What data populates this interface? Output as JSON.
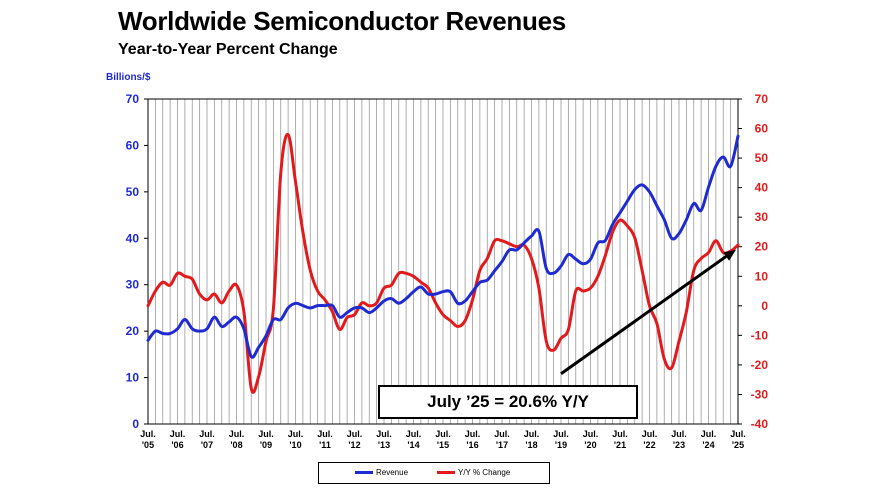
{
  "title": "Worldwide Semiconductor Revenues",
  "subtitle": "Year-to-Year Percent Change",
  "annotation": "July ’25 = 20.6% Y/Y",
  "colors": {
    "revenue": "#1f2bd1",
    "yoy": "#e31a1c",
    "trend_arrow": "#000000",
    "grid": "#9a9a9a"
  },
  "chart_data": {
    "type": "line",
    "title": "Worldwide Semiconductor Revenues",
    "subtitle": "Year-to-Year Percent Change",
    "left_axis": {
      "label": "Billions/$",
      "range": [
        0,
        70
      ],
      "ticks": [
        "0",
        "10",
        "20",
        "30",
        "40",
        "50",
        "60",
        "70"
      ]
    },
    "right_axis": {
      "range": [
        -40,
        70
      ],
      "ticks": [
        "-40",
        "-30",
        "-20",
        "-10",
        "0",
        "10",
        "20",
        "30",
        "40",
        "50",
        "60",
        "70"
      ]
    },
    "x_ticks": [
      {
        "top": "Jul.",
        "bottom": "'05"
      },
      {
        "top": "Jul.",
        "bottom": "'06"
      },
      {
        "top": "Jul.",
        "bottom": "'07"
      },
      {
        "top": "Jul.",
        "bottom": "'08"
      },
      {
        "top": "Jul.",
        "bottom": "'09"
      },
      {
        "top": "Jul.",
        "bottom": "'10"
      },
      {
        "top": "Jul.",
        "bottom": "'11"
      },
      {
        "top": "Jul.",
        "bottom": "'12"
      },
      {
        "top": "Jul.",
        "bottom": "'13"
      },
      {
        "top": "Jul.",
        "bottom": "'14"
      },
      {
        "top": "Jul.",
        "bottom": "'15"
      },
      {
        "top": "Jul.",
        "bottom": "'16"
      },
      {
        "top": "Jul.",
        "bottom": "'17"
      },
      {
        "top": "Jul.",
        "bottom": "'18"
      },
      {
        "top": "Jul.",
        "bottom": "'19"
      },
      {
        "top": "Jul.",
        "bottom": "'20"
      },
      {
        "top": "Jul.",
        "bottom": "'21"
      },
      {
        "top": "Jul.",
        "bottom": "'22"
      },
      {
        "top": "Jul.",
        "bottom": "'23"
      },
      {
        "top": "Jul.",
        "bottom": "'24"
      },
      {
        "top": "Jul.",
        "bottom": "'25"
      }
    ],
    "grid": true,
    "legend_position": "bottom-center",
    "series": [
      {
        "name": "Revenue",
        "axis": "left",
        "points": [
          [
            "2005-07",
            18.0
          ],
          [
            "2005-10",
            20.0
          ],
          [
            "2006-01",
            19.5
          ],
          [
            "2006-04",
            19.5
          ],
          [
            "2006-07",
            20.5
          ],
          [
            "2006-10",
            22.5
          ],
          [
            "2007-01",
            20.5
          ],
          [
            "2007-04",
            20.0
          ],
          [
            "2007-07",
            20.5
          ],
          [
            "2007-10",
            23.0
          ],
          [
            "2008-01",
            21.0
          ],
          [
            "2008-04",
            22.0
          ],
          [
            "2008-07",
            23.0
          ],
          [
            "2008-10",
            20.5
          ],
          [
            "2009-01",
            14.5
          ],
          [
            "2009-04",
            16.5
          ],
          [
            "2009-07",
            19.0
          ],
          [
            "2009-10",
            22.5
          ],
          [
            "2010-01",
            22.5
          ],
          [
            "2010-04",
            25.0
          ],
          [
            "2010-07",
            26.0
          ],
          [
            "2010-10",
            25.5
          ],
          [
            "2011-01",
            25.0
          ],
          [
            "2011-04",
            25.5
          ],
          [
            "2011-07",
            25.5
          ],
          [
            "2011-10",
            25.5
          ],
          [
            "2012-01",
            23.0
          ],
          [
            "2012-04",
            24.0
          ],
          [
            "2012-07",
            25.0
          ],
          [
            "2012-10",
            25.0
          ],
          [
            "2013-01",
            24.0
          ],
          [
            "2013-04",
            25.0
          ],
          [
            "2013-07",
            26.5
          ],
          [
            "2013-10",
            27.0
          ],
          [
            "2014-01",
            26.0
          ],
          [
            "2014-04",
            27.0
          ],
          [
            "2014-07",
            28.5
          ],
          [
            "2014-10",
            29.5
          ],
          [
            "2015-01",
            28.0
          ],
          [
            "2015-04",
            28.0
          ],
          [
            "2015-07",
            28.5
          ],
          [
            "2015-10",
            28.5
          ],
          [
            "2016-01",
            26.0
          ],
          [
            "2016-04",
            26.5
          ],
          [
            "2016-07",
            28.5
          ],
          [
            "2016-10",
            30.5
          ],
          [
            "2017-01",
            31.0
          ],
          [
            "2017-04",
            33.0
          ],
          [
            "2017-07",
            35.0
          ],
          [
            "2017-10",
            37.5
          ],
          [
            "2018-01",
            37.5
          ],
          [
            "2018-04",
            39.0
          ],
          [
            "2018-07",
            40.5
          ],
          [
            "2018-10",
            41.5
          ],
          [
            "2019-01",
            33.5
          ],
          [
            "2019-04",
            32.5
          ],
          [
            "2019-07",
            34.0
          ],
          [
            "2019-10",
            36.5
          ],
          [
            "2020-01",
            35.5
          ],
          [
            "2020-04",
            34.5
          ],
          [
            "2020-07",
            35.5
          ],
          [
            "2020-10",
            39.0
          ],
          [
            "2021-01",
            39.5
          ],
          [
            "2021-04",
            43.0
          ],
          [
            "2021-07",
            45.5
          ],
          [
            "2021-10",
            48.0
          ],
          [
            "2022-01",
            50.5
          ],
          [
            "2022-04",
            51.5
          ],
          [
            "2022-07",
            50.0
          ],
          [
            "2022-10",
            47.0
          ],
          [
            "2023-01",
            44.0
          ],
          [
            "2023-04",
            40.0
          ],
          [
            "2023-07",
            41.0
          ],
          [
            "2023-10",
            44.0
          ],
          [
            "2024-01",
            47.5
          ],
          [
            "2024-04",
            46.0
          ],
          [
            "2024-07",
            51.0
          ],
          [
            "2024-10",
            55.5
          ],
          [
            "2025-01",
            57.5
          ],
          [
            "2025-04",
            55.5
          ],
          [
            "2025-07",
            62.0
          ]
        ]
      },
      {
        "name": "Y/Y % Change",
        "axis": "right",
        "points": [
          [
            "2005-07",
            0.0
          ],
          [
            "2005-10",
            5.0
          ],
          [
            "2006-01",
            8.0
          ],
          [
            "2006-04",
            7.0
          ],
          [
            "2006-07",
            11.0
          ],
          [
            "2006-10",
            10.0
          ],
          [
            "2007-01",
            9.0
          ],
          [
            "2007-04",
            4.0
          ],
          [
            "2007-07",
            2.0
          ],
          [
            "2007-10",
            4.0
          ],
          [
            "2008-01",
            1.0
          ],
          [
            "2008-04",
            5.0
          ],
          [
            "2008-07",
            7.0
          ],
          [
            "2008-10",
            -2.0
          ],
          [
            "2009-01",
            -28.0
          ],
          [
            "2009-04",
            -24.0
          ],
          [
            "2009-07",
            -12.0
          ],
          [
            "2009-10",
            -1.0
          ],
          [
            "2010-01",
            45.0
          ],
          [
            "2010-04",
            58.0
          ],
          [
            "2010-07",
            42.0
          ],
          [
            "2010-10",
            25.0
          ],
          [
            "2011-01",
            12.0
          ],
          [
            "2011-04",
            5.0
          ],
          [
            "2011-07",
            2.0
          ],
          [
            "2011-10",
            -2.0
          ],
          [
            "2012-01",
            -8.0
          ],
          [
            "2012-04",
            -4.0
          ],
          [
            "2012-07",
            -3.0
          ],
          [
            "2012-10",
            1.0
          ],
          [
            "2013-01",
            0.0
          ],
          [
            "2013-04",
            1.0
          ],
          [
            "2013-07",
            6.0
          ],
          [
            "2013-10",
            7.0
          ],
          [
            "2014-01",
            11.0
          ],
          [
            "2014-04",
            11.0
          ],
          [
            "2014-07",
            10.0
          ],
          [
            "2014-10",
            8.0
          ],
          [
            "2015-01",
            6.0
          ],
          [
            "2015-04",
            1.0
          ],
          [
            "2015-07",
            -3.0
          ],
          [
            "2015-10",
            -5.0
          ],
          [
            "2016-01",
            -7.0
          ],
          [
            "2016-04",
            -5.0
          ],
          [
            "2016-07",
            2.0
          ],
          [
            "2016-10",
            12.0
          ],
          [
            "2017-01",
            16.0
          ],
          [
            "2017-04",
            22.0
          ],
          [
            "2017-07",
            22.0
          ],
          [
            "2017-10",
            21.0
          ],
          [
            "2018-01",
            20.0
          ],
          [
            "2018-04",
            20.5
          ],
          [
            "2018-07",
            16.0
          ],
          [
            "2018-10",
            6.0
          ],
          [
            "2019-01",
            -12.0
          ],
          [
            "2019-04",
            -15.0
          ],
          [
            "2019-07",
            -11.0
          ],
          [
            "2019-10",
            -8.0
          ],
          [
            "2020-01",
            5.0
          ],
          [
            "2020-04",
            5.0
          ],
          [
            "2020-07",
            6.0
          ],
          [
            "2020-10",
            10.0
          ],
          [
            "2021-01",
            17.0
          ],
          [
            "2021-04",
            25.0
          ],
          [
            "2021-07",
            29.0
          ],
          [
            "2021-10",
            27.0
          ],
          [
            "2022-01",
            23.0
          ],
          [
            "2022-04",
            12.0
          ],
          [
            "2022-07",
            0.0
          ],
          [
            "2022-10",
            -6.0
          ],
          [
            "2023-01",
            -18.0
          ],
          [
            "2023-04",
            -21.0
          ],
          [
            "2023-07",
            -12.0
          ],
          [
            "2023-10",
            -2.0
          ],
          [
            "2024-01",
            12.0
          ],
          [
            "2024-04",
            16.0
          ],
          [
            "2024-07",
            18.0
          ],
          [
            "2024-10",
            22.0
          ],
          [
            "2025-01",
            18.0
          ],
          [
            "2025-04",
            18.5
          ],
          [
            "2025-07",
            20.6
          ]
        ]
      }
    ],
    "trend_arrow": {
      "from": [
        "2019-07",
        -23
      ],
      "to": [
        "2025-07",
        19
      ]
    }
  },
  "legend": {
    "revenue": "Revenue",
    "yoy": "Y/Y % Change"
  }
}
